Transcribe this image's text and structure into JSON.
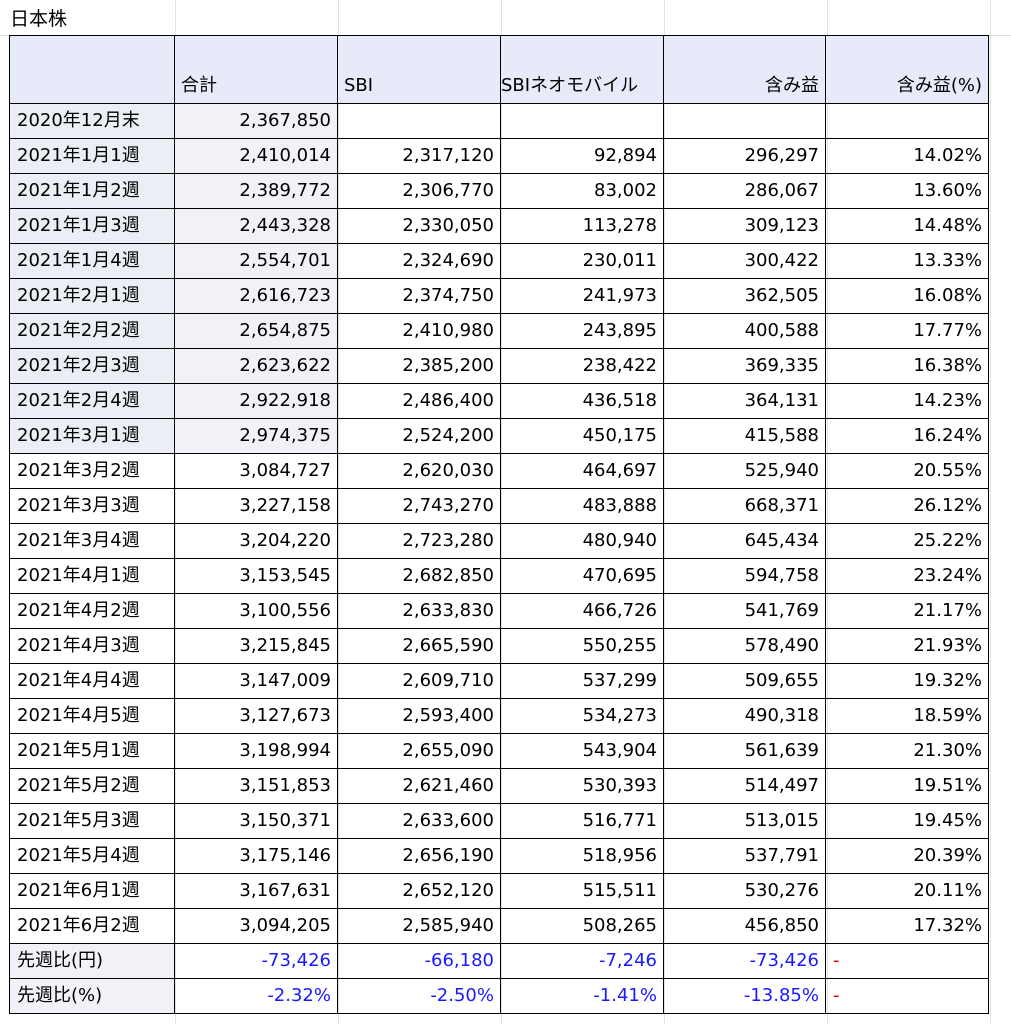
{
  "sheet": {
    "title": "日本株"
  },
  "header": [
    "",
    "合計",
    "SBI",
    "SBIネオモバイル",
    "含み益",
    "含み益(%)"
  ],
  "rows": [
    [
      "2020年12月末",
      "2,367,850",
      "",
      "",
      "",
      ""
    ],
    [
      "2021年1月1週",
      "2,410,014",
      "2,317,120",
      "92,894",
      "296,297",
      "14.02%"
    ],
    [
      "2021年1月2週",
      "2,389,772",
      "2,306,770",
      "83,002",
      "286,067",
      "13.60%"
    ],
    [
      "2021年1月3週",
      "2,443,328",
      "2,330,050",
      "113,278",
      "309,123",
      "14.48%"
    ],
    [
      "2021年1月4週",
      "2,554,701",
      "2,324,690",
      "230,011",
      "300,422",
      "13.33%"
    ],
    [
      "2021年2月1週",
      "2,616,723",
      "2,374,750",
      "241,973",
      "362,505",
      "16.08%"
    ],
    [
      "2021年2月2週",
      "2,654,875",
      "2,410,980",
      "243,895",
      "400,588",
      "17.77%"
    ],
    [
      "2021年2月3週",
      "2,623,622",
      "2,385,200",
      "238,422",
      "369,335",
      "16.38%"
    ],
    [
      "2021年2月4週",
      "2,922,918",
      "2,486,400",
      "436,518",
      "364,131",
      "14.23%"
    ],
    [
      "2021年3月1週",
      "2,974,375",
      "2,524,200",
      "450,175",
      "415,588",
      "16.24%"
    ],
    [
      "2021年3月2週",
      "3,084,727",
      "2,620,030",
      "464,697",
      "525,940",
      "20.55%"
    ],
    [
      "2021年3月3週",
      "3,227,158",
      "2,743,270",
      "483,888",
      "668,371",
      "26.12%"
    ],
    [
      "2021年3月4週",
      "3,204,220",
      "2,723,280",
      "480,940",
      "645,434",
      "25.22%"
    ],
    [
      "2021年4月1週",
      "3,153,545",
      "2,682,850",
      "470,695",
      "594,758",
      "23.24%"
    ],
    [
      "2021年4月2週",
      "3,100,556",
      "2,633,830",
      "466,726",
      "541,769",
      "21.17%"
    ],
    [
      "2021年4月3週",
      "3,215,845",
      "2,665,590",
      "550,255",
      "578,490",
      "21.93%"
    ],
    [
      "2021年4月4週",
      "3,147,009",
      "2,609,710",
      "537,299",
      "509,655",
      "19.32%"
    ],
    [
      "2021年4月5週",
      "3,127,673",
      "2,593,400",
      "534,273",
      "490,318",
      "18.59%"
    ],
    [
      "2021年5月1週",
      "3,198,994",
      "2,655,090",
      "543,904",
      "561,639",
      "21.30%"
    ],
    [
      "2021年5月2週",
      "3,151,853",
      "2,621,460",
      "530,393",
      "514,497",
      "19.51%"
    ],
    [
      "2021年5月3週",
      "3,150,371",
      "2,633,600",
      "516,771",
      "513,015",
      "19.45%"
    ],
    [
      "2021年5月4週",
      "3,175,146",
      "2,656,190",
      "518,956",
      "537,791",
      "20.39%"
    ],
    [
      "2021年6月1週",
      "3,167,631",
      "2,652,120",
      "515,511",
      "530,276",
      "20.11%"
    ],
    [
      "2021年6月2週",
      "3,094,205",
      "2,585,940",
      "508,265",
      "456,850",
      "17.32%"
    ]
  ],
  "summary": [
    [
      "先週比(円)",
      "-73,426",
      "-66,180",
      "-7,246",
      "-73,426",
      "-"
    ],
    [
      "先週比(%)",
      "-2.32%",
      "-2.50%",
      "-1.41%",
      "-13.85%",
      "-"
    ]
  ],
  "colors": {
    "header_bg": "#e7eaf8",
    "negative": "#1a1aff",
    "dash": "#e00000",
    "shade": "#f1f2f7"
  }
}
